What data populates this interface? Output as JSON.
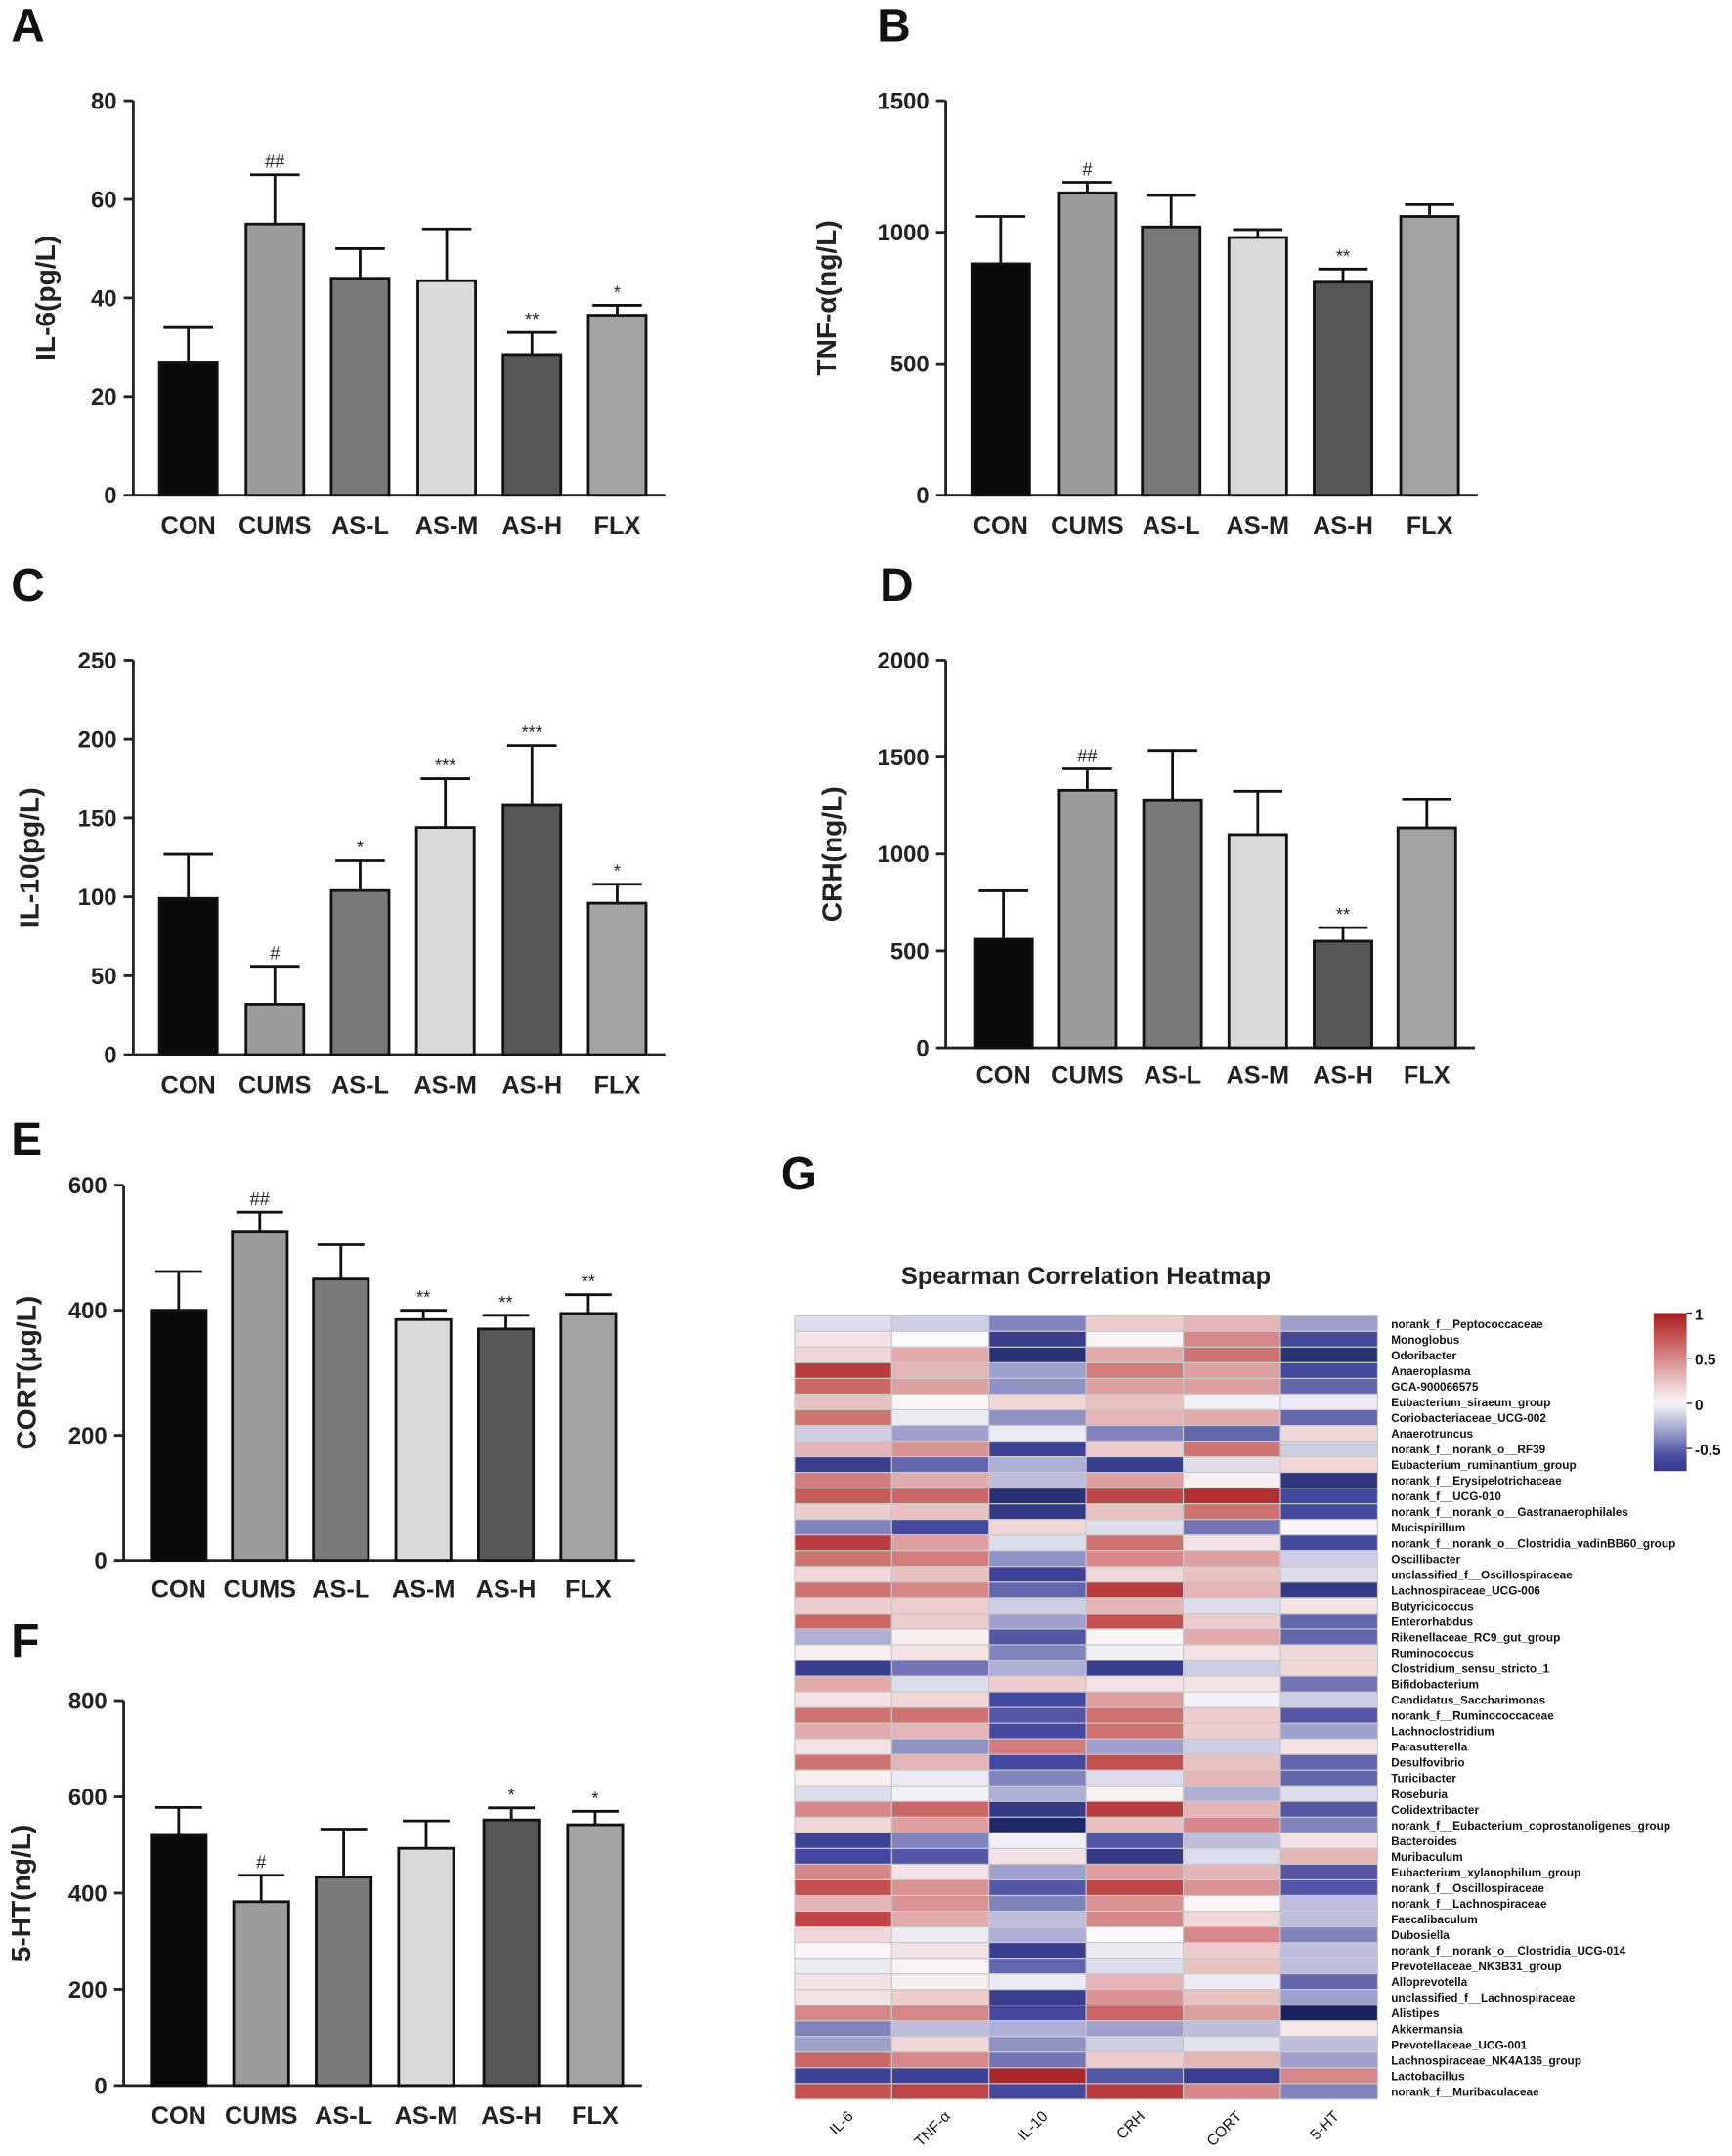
{
  "chart_data": [
    {
      "panel": "A",
      "type": "bar",
      "ylabel": "IL-6(pg/L)",
      "ylim": [
        0,
        80
      ],
      "yticks": [
        0,
        20,
        40,
        60,
        80
      ],
      "categories": [
        "CON",
        "CUMS",
        "AS-L",
        "AS-M",
        "AS-H",
        "FLX"
      ],
      "values": [
        27,
        55,
        44,
        43.5,
        28.5,
        36.5
      ],
      "errors": [
        7,
        10,
        6,
        10.5,
        4.5,
        2
      ],
      "significance": [
        "",
        "##",
        "",
        "",
        "**",
        "*"
      ]
    },
    {
      "panel": "B",
      "type": "bar",
      "ylabel": "TNF-α(ng/L)",
      "ylim": [
        0,
        1500
      ],
      "yticks": [
        0,
        500,
        1000,
        1500
      ],
      "categories": [
        "CON",
        "CUMS",
        "AS-L",
        "AS-M",
        "AS-H",
        "FLX"
      ],
      "values": [
        880,
        1150,
        1020,
        980,
        810,
        1060
      ],
      "errors": [
        180,
        40,
        120,
        30,
        50,
        45
      ],
      "significance": [
        "",
        "#",
        "",
        "",
        "**",
        ""
      ]
    },
    {
      "panel": "C",
      "type": "bar",
      "ylabel": "IL-10(pg/L)",
      "ylim": [
        0,
        250
      ],
      "yticks": [
        0,
        50,
        100,
        150,
        200,
        250
      ],
      "categories": [
        "CON",
        "CUMS",
        "AS-L",
        "AS-M",
        "AS-H",
        "FLX"
      ],
      "values": [
        99,
        32,
        104,
        144,
        158,
        96
      ],
      "errors": [
        28,
        24,
        19,
        31,
        38,
        12
      ],
      "significance": [
        "",
        "#",
        "*",
        "***",
        "***",
        "*"
      ]
    },
    {
      "panel": "D",
      "type": "bar",
      "ylabel": "CRH(ng/L)",
      "ylim": [
        0,
        2000
      ],
      "yticks": [
        0,
        500,
        1000,
        1500,
        2000
      ],
      "categories": [
        "CON",
        "CUMS",
        "AS-L",
        "AS-M",
        "AS-H",
        "FLX"
      ],
      "values": [
        560,
        1330,
        1275,
        1100,
        550,
        1135
      ],
      "errors": [
        250,
        110,
        260,
        225,
        70,
        145
      ],
      "significance": [
        "",
        "##",
        "",
        "",
        "**",
        ""
      ]
    },
    {
      "panel": "E",
      "type": "bar",
      "ylabel": "CORT(μg/L)",
      "ylim": [
        0,
        600
      ],
      "yticks": [
        0,
        200,
        400,
        600
      ],
      "categories": [
        "CON",
        "CUMS",
        "AS-L",
        "AS-M",
        "AS-H",
        "FLX"
      ],
      "values": [
        400,
        525,
        450,
        385,
        370,
        395
      ],
      "errors": [
        62,
        32,
        55,
        15,
        22,
        30
      ],
      "significance": [
        "",
        "##",
        "",
        "**",
        "**",
        "**"
      ]
    },
    {
      "panel": "F",
      "type": "bar",
      "ylabel": "5-HT(ng/L)",
      "ylim": [
        0,
        800
      ],
      "yticks": [
        0,
        200,
        400,
        600,
        800
      ],
      "categories": [
        "CON",
        "CUMS",
        "AS-L",
        "AS-M",
        "AS-H",
        "FLX"
      ],
      "values": [
        520,
        382,
        433,
        493,
        552,
        542
      ],
      "errors": [
        58,
        55,
        100,
        57,
        25,
        28
      ],
      "significance": [
        "",
        "#",
        "",
        "",
        "*",
        "*"
      ]
    },
    {
      "panel": "G",
      "type": "heatmap",
      "title": "Spearman Correlation Heatmap",
      "columns": [
        "IL-6",
        "TNF-α",
        "IL-10",
        "CRH",
        "CORT",
        "5-HT"
      ],
      "colorbar_ticks": [
        1,
        0.5,
        0,
        -0.5
      ],
      "rows": [
        [
          "norank_f__Peptococcaceae",
          [
            -0.1,
            -0.15,
            -0.4,
            0.2,
            0.3,
            -0.3
          ]
        ],
        [
          "Monoglobus",
          [
            0.1,
            0,
            -0.7,
            0.02,
            0.5,
            -0.6
          ]
        ],
        [
          "Odoribacter",
          [
            0.15,
            0.35,
            -0.85,
            0.35,
            0.6,
            -0.85
          ]
        ],
        [
          "Anaeroplasma",
          [
            0.85,
            0.3,
            -0.3,
            0.55,
            0.4,
            -0.6
          ]
        ],
        [
          "GCA-900066575",
          [
            0.65,
            0.4,
            -0.35,
            0.4,
            0.4,
            -0.5
          ]
        ],
        [
          "Eubacterium_siraeum_group",
          [
            0.25,
            0.02,
            0.15,
            0.25,
            -0.03,
            -0.05
          ]
        ],
        [
          "Coriobacteriaceae_UCG-002",
          [
            0.6,
            -0.05,
            -0.35,
            0.3,
            0.35,
            -0.5
          ]
        ],
        [
          "Anaerotruncus",
          [
            -0.15,
            -0.3,
            -0.05,
            -0.4,
            -0.5,
            0.15
          ]
        ],
        [
          "norank_f__norank_o__RF39",
          [
            0.3,
            0.45,
            -0.65,
            0.2,
            0.6,
            -0.15
          ]
        ],
        [
          "Eubacterium_ruminantium_group",
          [
            -0.7,
            -0.5,
            -0.25,
            -0.7,
            -0.1,
            0.15
          ]
        ],
        [
          "norank_f__Erysipelotrichaceae",
          [
            0.55,
            0.35,
            -0.2,
            0.4,
            0.05,
            -0.8
          ]
        ],
        [
          "norank_f__UCG-010",
          [
            0.7,
            0.65,
            -0.85,
            0.8,
            0.9,
            -0.6
          ]
        ],
        [
          "norank_f__norank_o__Gastranaerophilales",
          [
            0.2,
            0.25,
            -0.75,
            0.25,
            0.6,
            -0.6
          ]
        ],
        [
          "Mucispirillum",
          [
            -0.4,
            -0.6,
            0.15,
            -0.1,
            -0.45,
            0.02
          ]
        ],
        [
          "norank_f__norank_o__Clostridia_vadinBB60_group",
          [
            0.85,
            0.4,
            -0.1,
            0.6,
            0.1,
            -0.6
          ]
        ],
        [
          "Oscillibacter",
          [
            0.6,
            0.55,
            -0.35,
            0.5,
            0.4,
            -0.15
          ]
        ],
        [
          "unclassified_f__Oscillospiraceae",
          [
            0.15,
            0.25,
            -0.65,
            0.15,
            0.25,
            -0.1
          ]
        ],
        [
          "Lachnospiraceae_UCG-006",
          [
            0.6,
            0.5,
            -0.5,
            0.85,
            0.3,
            -0.75
          ]
        ],
        [
          "Butyricicoccus",
          [
            0.2,
            0.2,
            -0.15,
            0.3,
            -0.1,
            0.1
          ]
        ],
        [
          "Enterorhabdus",
          [
            0.65,
            0.2,
            -0.3,
            0.75,
            0.2,
            -0.5
          ]
        ],
        [
          "Rikenellaceae_RC9_gut_group",
          [
            -0.25,
            0.05,
            -0.55,
            0.02,
            0.35,
            -0.5
          ]
        ],
        [
          "Ruminococcus",
          [
            0.05,
            0.1,
            -0.4,
            -0.03,
            0.1,
            0.15
          ]
        ],
        [
          "Clostridium_sensu_stricto_1",
          [
            -0.7,
            -0.45,
            -0.25,
            -0.7,
            -0.15,
            0.15
          ]
        ],
        [
          "Bifidobacterium",
          [
            0.35,
            -0.1,
            0.2,
            0.1,
            0.1,
            -0.45
          ]
        ],
        [
          "Candidatus_Saccharimonas",
          [
            0.1,
            0.15,
            -0.6,
            0.4,
            -0.03,
            -0.15
          ]
        ],
        [
          "norank_f__Ruminococcaceae",
          [
            0.6,
            0.6,
            -0.55,
            0.6,
            0.2,
            -0.55
          ]
        ],
        [
          "Lachnoclostridium",
          [
            0.35,
            0.3,
            -0.6,
            0.6,
            0.2,
            -0.3
          ]
        ],
        [
          "Parasutterella",
          [
            0.1,
            -0.35,
            0.55,
            -0.3,
            -0.15,
            0.1
          ]
        ],
        [
          "Desulfovibrio",
          [
            0.6,
            0.3,
            -0.6,
            0.75,
            0.25,
            -0.5
          ]
        ],
        [
          "Turicibacter",
          [
            0.05,
            -0.05,
            -0.4,
            -0.1,
            0.3,
            -0.5
          ]
        ],
        [
          "Roseburia",
          [
            -0.1,
            -0.03,
            -0.25,
            0.03,
            -0.25,
            -0.1
          ]
        ],
        [
          "Colidextribacter",
          [
            0.5,
            0.65,
            -0.75,
            0.85,
            0.3,
            -0.55
          ]
        ],
        [
          "norank_f__Eubacterium_coprostanoligenes_group",
          [
            0.15,
            0.4,
            -0.95,
            0.25,
            0.5,
            -0.4
          ]
        ],
        [
          "Bacteroides",
          [
            -0.65,
            -0.4,
            -0.03,
            -0.55,
            -0.2,
            0.1
          ]
        ],
        [
          "Muribaculum",
          [
            -0.6,
            -0.55,
            0.1,
            -0.75,
            -0.1,
            0.3
          ]
        ],
        [
          "Eubacterium_xylanophilum_group",
          [
            0.5,
            0.1,
            -0.3,
            0.4,
            0.3,
            -0.55
          ]
        ],
        [
          "norank_f__Oscillospiraceae",
          [
            0.75,
            0.45,
            -0.55,
            0.8,
            0.45,
            -0.55
          ]
        ],
        [
          "norank_f__Lachnospiraceae",
          [
            0.3,
            0.45,
            -0.4,
            0.45,
            0.02,
            -0.2
          ]
        ],
        [
          "Faecalibaculum",
          [
            0.8,
            0.35,
            -0.2,
            0.5,
            0.15,
            -0.2
          ]
        ],
        [
          "Dubosiella",
          [
            0.15,
            -0.05,
            -0.25,
            0,
            0.5,
            -0.4
          ]
        ],
        [
          "norank_f__norank_o__Clostridia_UCG-014",
          [
            0.02,
            0.1,
            -0.7,
            -0.05,
            0.2,
            -0.2
          ]
        ],
        [
          "Prevotellaceae_NK3B31_group",
          [
            -0.05,
            0.03,
            -0.5,
            -0.1,
            0.25,
            -0.2
          ]
        ],
        [
          "Alloprevotella",
          [
            0.1,
            0.05,
            -0.05,
            0.3,
            -0.05,
            -0.5
          ]
        ],
        [
          "unclassified_f__Lachnospiraceae",
          [
            0.1,
            0.2,
            -0.7,
            0.45,
            0.25,
            -0.3
          ]
        ],
        [
          "Alistipes",
          [
            0.5,
            0.5,
            -0.6,
            0.65,
            0.4,
            -1
          ]
        ],
        [
          "Akkermansia",
          [
            -0.4,
            -0.2,
            -0.25,
            -0.3,
            -0.2,
            0.08
          ]
        ],
        [
          "Prevotellaceae_UCG-001",
          [
            -0.3,
            0.15,
            -0.35,
            -0.15,
            -0.08,
            -0.2
          ]
        ],
        [
          "Lachnospiraceae_NK4A136_group",
          [
            0.65,
            0.5,
            -0.45,
            0.2,
            0.3,
            -0.3
          ]
        ],
        [
          "Lactobacillus",
          [
            -0.65,
            -0.65,
            0.95,
            -0.55,
            -0.7,
            0.5
          ]
        ],
        [
          "norank_f__Muribaculaceae",
          [
            0.75,
            0.8,
            -0.6,
            0.85,
            0.5,
            -0.4
          ]
        ]
      ]
    }
  ],
  "bar_colors": [
    "#0a0a0a",
    "#9c9c9c",
    "#7a7a7a",
    "#d9d9d9",
    "#575757",
    "#a3a3a3"
  ]
}
